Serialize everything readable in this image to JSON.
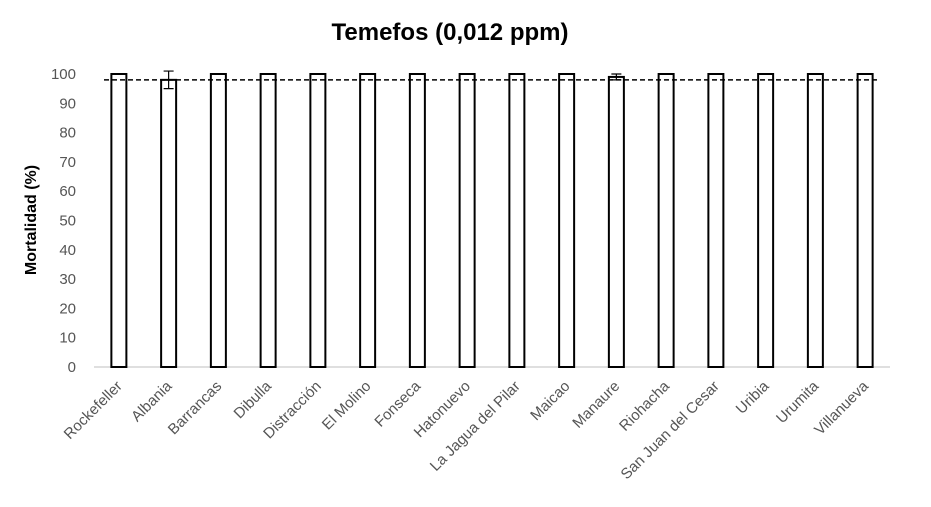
{
  "chart_data": {
    "type": "bar",
    "title": "Temefos (0,012 ppm)",
    "xlabel": "",
    "ylabel": "Mortalidad (%)",
    "ylim": [
      0,
      100
    ],
    "yticks": [
      "0",
      "10",
      "20",
      "30",
      "40",
      "50",
      "60",
      "70",
      "80",
      "90",
      "100"
    ],
    "grid": false,
    "legend": "none",
    "categories": [
      "Rockefeller",
      "Albania",
      "Barrancas",
      "Dibulla",
      "Distracción",
      "El Molino",
      "Fonseca",
      "Hatonuevo",
      "La Jagua del Pilar",
      "Maicao",
      "Manaure",
      "Riohacha",
      "San Juan del Cesar",
      "Uribia",
      "Urumita",
      "Villanueva"
    ],
    "values": [
      100,
      98,
      100,
      100,
      100,
      100,
      100,
      100,
      100,
      100,
      99,
      100,
      100,
      100,
      100,
      100
    ],
    "error": [
      0,
      3,
      0,
      0,
      0,
      0,
      0,
      0,
      0,
      0,
      1,
      0,
      0,
      0,
      0,
      0
    ],
    "reference_line": 98,
    "colors": {
      "bar_fill": "#ffffff",
      "bar_stroke": "#000000",
      "tick_text": "#555555"
    }
  }
}
